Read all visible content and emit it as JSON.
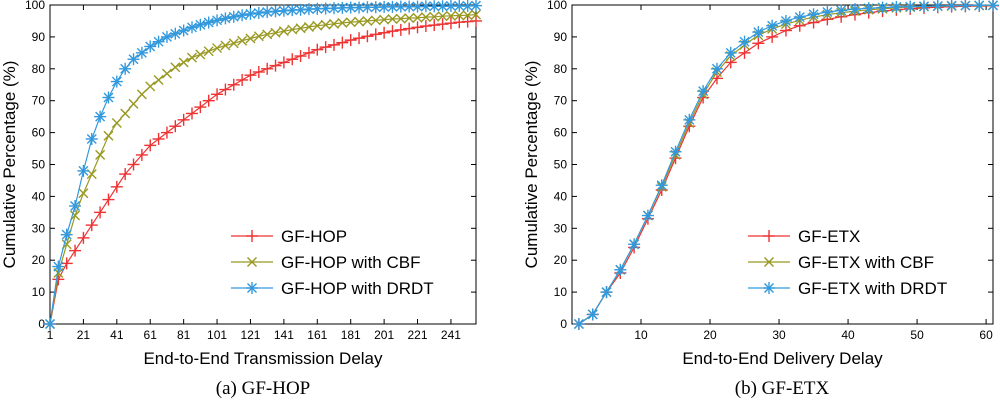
{
  "chart_data": [
    {
      "type": "line",
      "id": "a",
      "caption": "(a) GF-HOP",
      "xlabel": "End-to-End Transmission Delay",
      "ylabel": "Cumulative Percentage (%)",
      "xlim": [
        1,
        256
      ],
      "ylim": [
        0,
        100
      ],
      "xticks": [
        1,
        21,
        41,
        61,
        81,
        101,
        121,
        141,
        161,
        181,
        201,
        221,
        241
      ],
      "yticks": [
        0,
        10,
        20,
        30,
        40,
        50,
        60,
        70,
        80,
        90,
        100
      ],
      "legend_position": "lower-right",
      "series": [
        {
          "name": "GF-HOP",
          "color": "#ee3333",
          "marker": "plus",
          "x": [
            1,
            6,
            11,
            16,
            21,
            26,
            31,
            36,
            41,
            46,
            51,
            56,
            61,
            66,
            71,
            76,
            81,
            86,
            91,
            96,
            101,
            106,
            111,
            116,
            121,
            126,
            131,
            136,
            141,
            146,
            151,
            156,
            161,
            166,
            171,
            176,
            181,
            186,
            191,
            196,
            201,
            206,
            211,
            216,
            221,
            226,
            231,
            236,
            241,
            246,
            251,
            256
          ],
          "y": [
            0,
            14,
            19,
            23,
            27,
            31,
            35,
            39,
            43,
            47,
            50,
            53,
            56,
            58,
            60,
            62,
            64,
            66,
            68,
            70,
            72,
            73.5,
            75,
            76.5,
            78,
            79,
            80,
            81,
            82,
            83,
            84,
            85,
            86,
            86.8,
            87.5,
            88.2,
            89,
            89.6,
            90.2,
            90.8,
            91.3,
            91.8,
            92.2,
            92.6,
            93,
            93.4,
            93.7,
            94,
            94.3,
            94.6,
            94.8,
            95
          ]
        },
        {
          "name": "GF-HOP with CBF",
          "color": "#999922",
          "marker": "x",
          "x": [
            1,
            6,
            11,
            16,
            21,
            26,
            31,
            36,
            41,
            46,
            51,
            56,
            61,
            66,
            71,
            76,
            81,
            86,
            91,
            96,
            101,
            106,
            111,
            116,
            121,
            126,
            131,
            136,
            141,
            146,
            151,
            156,
            161,
            166,
            171,
            176,
            181,
            186,
            191,
            196,
            201,
            206,
            211,
            216,
            221,
            226,
            231,
            236,
            241,
            246,
            251,
            256
          ],
          "y": [
            0,
            16,
            25,
            34,
            41,
            47,
            53,
            59,
            63,
            66,
            69,
            72,
            74.5,
            76.5,
            78.5,
            80.5,
            82,
            83.5,
            84.5,
            85.5,
            86.5,
            87.3,
            88,
            88.8,
            89.5,
            90.2,
            90.8,
            91.3,
            91.8,
            92.3,
            92.7,
            93.1,
            93.5,
            93.8,
            94.1,
            94.4,
            94.6,
            94.8,
            95,
            95.2,
            95.4,
            95.6,
            95.7,
            95.9,
            96,
            96.2,
            96.3,
            96.5,
            96.6,
            96.7,
            96.8,
            97
          ]
        },
        {
          "name": "GF-HOP with DRDT",
          "color": "#3399dd",
          "marker": "asterisk",
          "x": [
            1,
            6,
            11,
            16,
            21,
            26,
            31,
            36,
            41,
            46,
            51,
            56,
            61,
            66,
            71,
            76,
            81,
            86,
            91,
            96,
            101,
            106,
            111,
            116,
            121,
            126,
            131,
            136,
            141,
            146,
            151,
            156,
            161,
            166,
            171,
            176,
            181,
            186,
            191,
            196,
            201,
            206,
            211,
            216,
            221,
            226,
            231,
            236,
            241,
            246,
            251,
            256
          ],
          "y": [
            0,
            18,
            28,
            37,
            48,
            58,
            65,
            71,
            76,
            80,
            83,
            85,
            87,
            88.5,
            90,
            91,
            92,
            93,
            93.8,
            94.5,
            95.2,
            95.8,
            96.3,
            96.8,
            97.2,
            97.5,
            97.8,
            98,
            98.2,
            98.4,
            98.5,
            98.7,
            98.8,
            98.9,
            99,
            99.1,
            99.2,
            99.2,
            99.3,
            99.3,
            99.4,
            99.4,
            99.5,
            99.5,
            99.5,
            99.6,
            99.6,
            99.6,
            99.7,
            99.7,
            99.7,
            99.8
          ]
        }
      ]
    },
    {
      "type": "line",
      "id": "b",
      "caption": "(b) GF-ETX",
      "xlabel": "End-to-End Delivery Delay",
      "ylabel": "Cumulative Percentage (%)",
      "xlim": [
        0,
        61
      ],
      "ylim": [
        0,
        100
      ],
      "xticks": [
        10,
        20,
        30,
        40,
        50,
        60
      ],
      "yticks": [
        0,
        10,
        20,
        30,
        40,
        50,
        60,
        70,
        80,
        90,
        100
      ],
      "legend_position": "lower-right",
      "series": [
        {
          "name": "GF-ETX",
          "color": "#ee3333",
          "marker": "plus",
          "x": [
            1,
            3,
            5,
            7,
            9,
            11,
            13,
            15,
            17,
            19,
            21,
            23,
            25,
            27,
            29,
            31,
            33,
            35,
            37,
            39,
            41,
            43,
            45,
            47,
            49,
            51,
            53,
            55,
            57,
            59,
            61
          ],
          "y": [
            0,
            3,
            10,
            16,
            24,
            33,
            42,
            52,
            62,
            71,
            77,
            82,
            85,
            88,
            90,
            92,
            93.5,
            94.5,
            95.5,
            96.3,
            97,
            97.6,
            98.1,
            98.5,
            98.8,
            99.1,
            99.3,
            99.5,
            99.6,
            99.7,
            99.8
          ]
        },
        {
          "name": "GF-ETX with CBF",
          "color": "#999922",
          "marker": "x",
          "x": [
            1,
            3,
            5,
            7,
            9,
            11,
            13,
            15,
            17,
            19,
            21,
            23,
            25,
            27,
            29,
            31,
            33,
            35,
            37,
            39,
            41,
            43,
            45,
            47,
            49,
            51,
            53,
            55,
            57,
            59,
            61
          ],
          "y": [
            0,
            3,
            10,
            17,
            25,
            34,
            43,
            53,
            63,
            72,
            79,
            84,
            87.5,
            90.5,
            92.5,
            94,
            95.2,
            96.2,
            97,
            97.6,
            98.1,
            98.5,
            98.8,
            99.1,
            99.3,
            99.5,
            99.6,
            99.7,
            99.8,
            99.8,
            99.9
          ]
        },
        {
          "name": "GF-ETX with DRDT",
          "color": "#3399dd",
          "marker": "asterisk",
          "x": [
            1,
            3,
            5,
            7,
            9,
            11,
            13,
            15,
            17,
            19,
            21,
            23,
            25,
            27,
            29,
            31,
            33,
            35,
            37,
            39,
            41,
            43,
            45,
            47,
            49,
            51,
            53,
            55,
            57,
            59,
            61
          ],
          "y": [
            0,
            3,
            10,
            17,
            25,
            34,
            43.5,
            54,
            64,
            73,
            80,
            85,
            88.5,
            91.5,
            93.5,
            95,
            96.2,
            97.1,
            97.8,
            98.3,
            98.7,
            99,
            99.2,
            99.4,
            99.5,
            99.6,
            99.7,
            99.8,
            99.8,
            99.9,
            99.9
          ]
        }
      ]
    }
  ]
}
